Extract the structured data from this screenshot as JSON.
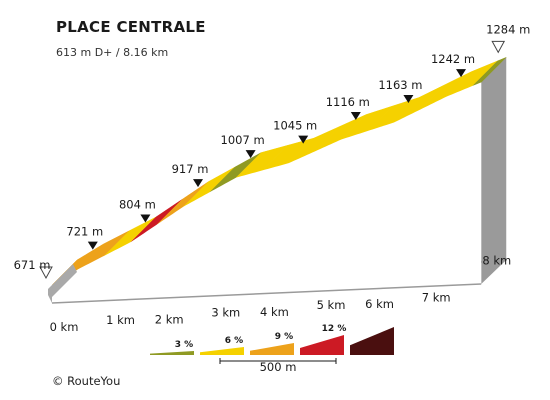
{
  "title": "PLACE CENTRALE",
  "subtitle": "613 m D+ / 8.16 km",
  "footer": "© RouteYou",
  "chart_data": {
    "type": "area",
    "xlabel": "",
    "ylabel": "",
    "x_unit": "km",
    "y_unit": "m",
    "xlim": [
      0,
      8.16
    ],
    "distance_ticks": [
      "0 km",
      "1 km",
      "2 km",
      "3 km",
      "4 km",
      "5 km",
      "6 km",
      "7 km",
      "8 km"
    ],
    "profile": [
      {
        "km": 0,
        "elev": 671
      },
      {
        "km": 0.5,
        "elev": 721
      },
      {
        "km": 1.5,
        "elev": 804
      },
      {
        "km": 2.5,
        "elev": 917
      },
      {
        "km": 3.5,
        "elev": 1007
      },
      {
        "km": 4.5,
        "elev": 1045
      },
      {
        "km": 5.5,
        "elev": 1116
      },
      {
        "km": 6.5,
        "elev": 1163
      },
      {
        "km": 7.5,
        "elev": 1242
      },
      {
        "km": 8.16,
        "elev": 1284
      }
    ],
    "elevation_labels": [
      {
        "km": 0,
        "text": "671 m",
        "marker": "start"
      },
      {
        "km": 0.5,
        "text": "721 m",
        "marker": "point"
      },
      {
        "km": 1.5,
        "text": "804 m",
        "marker": "point"
      },
      {
        "km": 2.5,
        "text": "917 m",
        "marker": "point"
      },
      {
        "km": 3.5,
        "text": "1007 m",
        "marker": "point"
      },
      {
        "km": 4.5,
        "text": "1045 m",
        "marker": "point"
      },
      {
        "km": 5.5,
        "text": "1116 m",
        "marker": "point"
      },
      {
        "km": 6.5,
        "text": "1163 m",
        "marker": "point"
      },
      {
        "km": 7.5,
        "text": "1242 m",
        "marker": "point"
      },
      {
        "km": 8.16,
        "text": "1284 m",
        "marker": "end"
      }
    ],
    "segments": [
      {
        "from_km": 0,
        "to_km": 1,
        "category": "9 %"
      },
      {
        "from_km": 1,
        "to_km": 1.5,
        "category": "6 %"
      },
      {
        "from_km": 1.5,
        "to_km": 2,
        "category": "12 %"
      },
      {
        "from_km": 2,
        "to_km": 2.5,
        "category": "9 %"
      },
      {
        "from_km": 2.5,
        "to_km": 3,
        "category": "6 %"
      },
      {
        "from_km": 3,
        "to_km": 3.5,
        "category": "3 %"
      },
      {
        "from_km": 3.5,
        "to_km": 4,
        "category": "6 %"
      },
      {
        "from_km": 4,
        "to_km": 4.5,
        "category": "6 %"
      },
      {
        "from_km": 4.5,
        "to_km": 5,
        "category": "6 %"
      },
      {
        "from_km": 5,
        "to_km": 5.5,
        "category": "6 %"
      },
      {
        "from_km": 5.5,
        "to_km": 6,
        "category": "6 %"
      },
      {
        "from_km": 6,
        "to_km": 6.5,
        "category": "6 %"
      },
      {
        "from_km": 6.5,
        "to_km": 7,
        "category": "6 %"
      },
      {
        "from_km": 7,
        "to_km": 7.5,
        "category": "6 %"
      },
      {
        "from_km": 7.5,
        "to_km": 8,
        "category": "6 %"
      },
      {
        "from_km": 8,
        "to_km": 8.16,
        "category": "3 %"
      }
    ],
    "legend": {
      "placement": "bottom-center",
      "entries": [
        {
          "label": "3 %",
          "color": "#8f9a23"
        },
        {
          "label": "6 %",
          "color": "#f5d100"
        },
        {
          "label": "9 %",
          "color": "#eda21b"
        },
        {
          "label": "12 %",
          "color": "#cc1a24"
        },
        {
          "label": "",
          "color": "#4a0f0f"
        }
      ],
      "scale_label": "500 m"
    },
    "colors": {
      "3 %": "#8f9a23",
      "6 %": "#f5d100",
      "9 %": "#eda21b",
      "12 %": "#cc1a24"
    }
  }
}
